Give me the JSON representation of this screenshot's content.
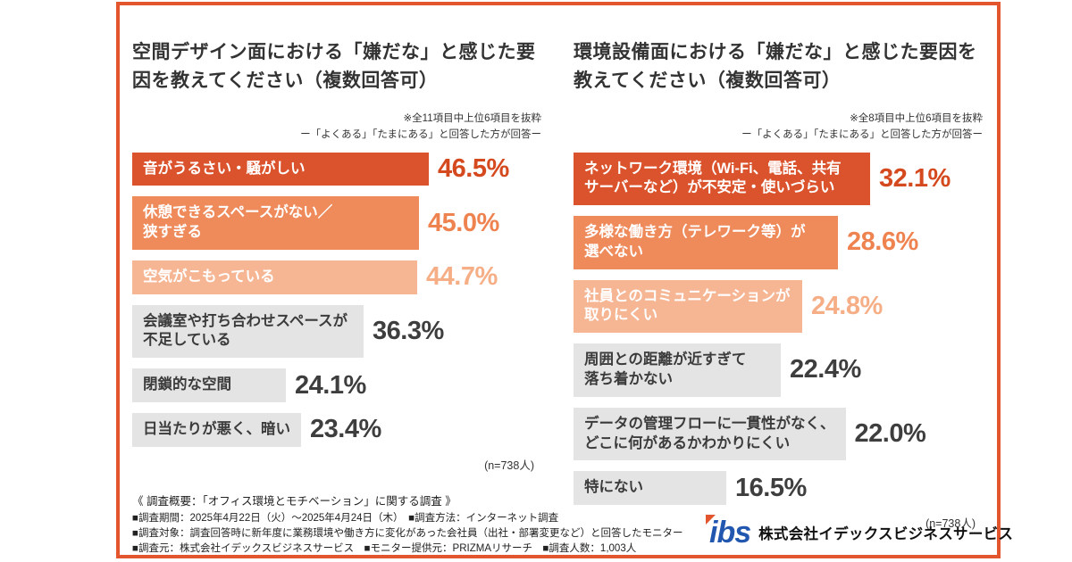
{
  "frame": {
    "border_color": "#E2552D",
    "background": "#FFFFFF"
  },
  "chart_data": [
    {
      "type": "bar",
      "orientation": "horizontal",
      "title": "空間デザイン面における「嫌だな」と感じた要因を教えてください（複数回答可）",
      "note": "※全11項目中上位6項目を抜粋",
      "subnote": "ー「よくある」「たまにある」と回答した方が回答ー",
      "sample_label": "(n=738人)",
      "unit": "%",
      "xlim": [
        0,
        50
      ],
      "legend": "none",
      "categories": [
        "音がうるさい・騒がしい",
        "休憩できるスペースがない／\n狭すぎる",
        "空気がこもっている",
        "会議室や打ち合わせスペースが\n不足している",
        "閉鎖的な空間",
        "日当たりが悪く、暗い"
      ],
      "values": [
        46.5,
        45.0,
        44.7,
        36.3,
        24.1,
        23.4
      ],
      "bar_colors": [
        "#DB532C",
        "#EF8A5B",
        "#F6B593",
        "#E4E4E4",
        "#E4E4E4",
        "#E4E4E4"
      ],
      "bar_text_colors": [
        "#FFFFFF",
        "#FFFFFF",
        "#FFFFFF",
        "#3B3B3B",
        "#3B3B3B",
        "#3B3B3B"
      ],
      "pct_colors": [
        "#D5491F",
        "#EF8350",
        "#F6AE87",
        "#3E3E3E",
        "#3E3E3E",
        "#3E3E3E"
      ]
    },
    {
      "type": "bar",
      "orientation": "horizontal",
      "title": "環境設備面における「嫌だな」と感じた要因を教えてください（複数回答可）",
      "note": "※全8項目中上位6項目を抜粋",
      "subnote": "ー「よくある」「たまにある」と回答した方が回答ー",
      "sample_label": "(n=738人)",
      "unit": "%",
      "xlim": [
        0,
        35
      ],
      "legend": "none",
      "categories": [
        "ネットワーク環境（Wi-Fi、電話、共有\nサーバーなど）が不安定・使いづらい",
        "多様な働き方（テレワーク等）が\n選べない",
        "社員とのコミュニケーションが\n取りにくい",
        "周囲との距離が近すぎて\n落ち着かない",
        "データの管理フローに一貫性がなく、\nどこに何があるかわかりにくい",
        "特にない"
      ],
      "values": [
        32.1,
        28.6,
        24.8,
        22.4,
        22.0,
        16.5
      ],
      "bar_colors": [
        "#DB532C",
        "#EF8A5B",
        "#F6B593",
        "#E4E4E4",
        "#E4E4E4",
        "#E4E4E4"
      ],
      "bar_text_colors": [
        "#FFFFFF",
        "#FFFFFF",
        "#FFFFFF",
        "#3B3B3B",
        "#3B3B3B",
        "#3B3B3B"
      ],
      "pct_colors": [
        "#D5491F",
        "#EF8350",
        "#F6AE87",
        "#3E3E3E",
        "#3E3E3E",
        "#3E3E3E"
      ]
    }
  ],
  "footer": {
    "heading": "《 調査概要：「オフィス環境とモチベーション」に関する調査 》",
    "lines": [
      "■調査期間：2025年4月22日（火）〜2025年4月24日（木）　■調査方法：インターネット調査",
      "■調査対象：調査回答時に新年度に業務環境や働き方に変化があった会社員（出社・部署変更など）と回答したモニター",
      "■調査元：株式会社イデックスビジネスサービス　■モニター提供元：PRIZMAリサーチ　■調査人数：1,003人"
    ]
  },
  "logo": {
    "mark": "ibs",
    "company": "株式会社イデックスビジネスサービス",
    "mark_color": "#2257B0",
    "accent_color": "#E2552D"
  }
}
